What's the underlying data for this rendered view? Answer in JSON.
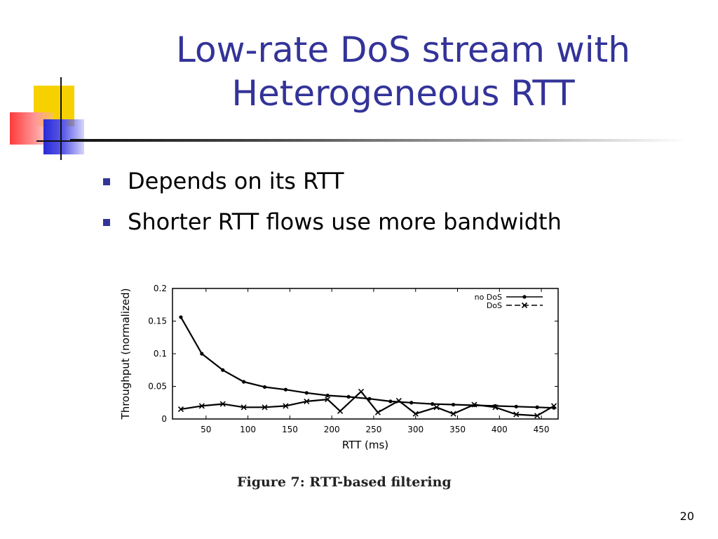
{
  "slide": {
    "title_lines": [
      "Low-rate DoS stream with",
      "Heterogeneous RTT"
    ],
    "bullets": [
      "Depends on its RTT",
      "Shorter RTT flows use more bandwidth"
    ],
    "page_number": "20",
    "accent_color": "#333399"
  },
  "figure": {
    "caption": "Figure 7: RTT-based filtering"
  },
  "chart_data": {
    "type": "line",
    "xlabel": "RTT (ms)",
    "ylabel": "Throughput (normalized)",
    "xlim": [
      10,
      470
    ],
    "ylim": [
      0,
      0.2
    ],
    "x_ticks": [
      50,
      100,
      150,
      200,
      250,
      300,
      350,
      400,
      450
    ],
    "y_ticks": [
      0,
      0.05,
      0.1,
      0.15,
      0.2
    ],
    "y_tick_labels": [
      "0",
      "0.05",
      "0.1",
      "0.15",
      "0.2"
    ],
    "legend_position": "top-right",
    "grid": false,
    "series": [
      {
        "name": "no DoS",
        "marker": "dot",
        "dash": "solid",
        "x": [
          20,
          45,
          70,
          95,
          120,
          145,
          170,
          195,
          220,
          245,
          270,
          295,
          320,
          345,
          370,
          395,
          420,
          445,
          465
        ],
        "y": [
          0.156,
          0.1,
          0.075,
          0.057,
          0.049,
          0.045,
          0.04,
          0.036,
          0.034,
          0.031,
          0.027,
          0.025,
          0.023,
          0.022,
          0.021,
          0.02,
          0.019,
          0.018,
          0.017
        ]
      },
      {
        "name": "DoS",
        "marker": "x",
        "dash": "dashed",
        "x": [
          20,
          45,
          70,
          95,
          120,
          145,
          170,
          195,
          210,
          235,
          255,
          280,
          300,
          325,
          345,
          370,
          395,
          420,
          445,
          465
        ],
        "y": [
          0.015,
          0.02,
          0.023,
          0.018,
          0.018,
          0.02,
          0.027,
          0.03,
          0.012,
          0.042,
          0.01,
          0.028,
          0.008,
          0.018,
          0.008,
          0.022,
          0.018,
          0.007,
          0.005,
          0.02
        ]
      }
    ]
  }
}
